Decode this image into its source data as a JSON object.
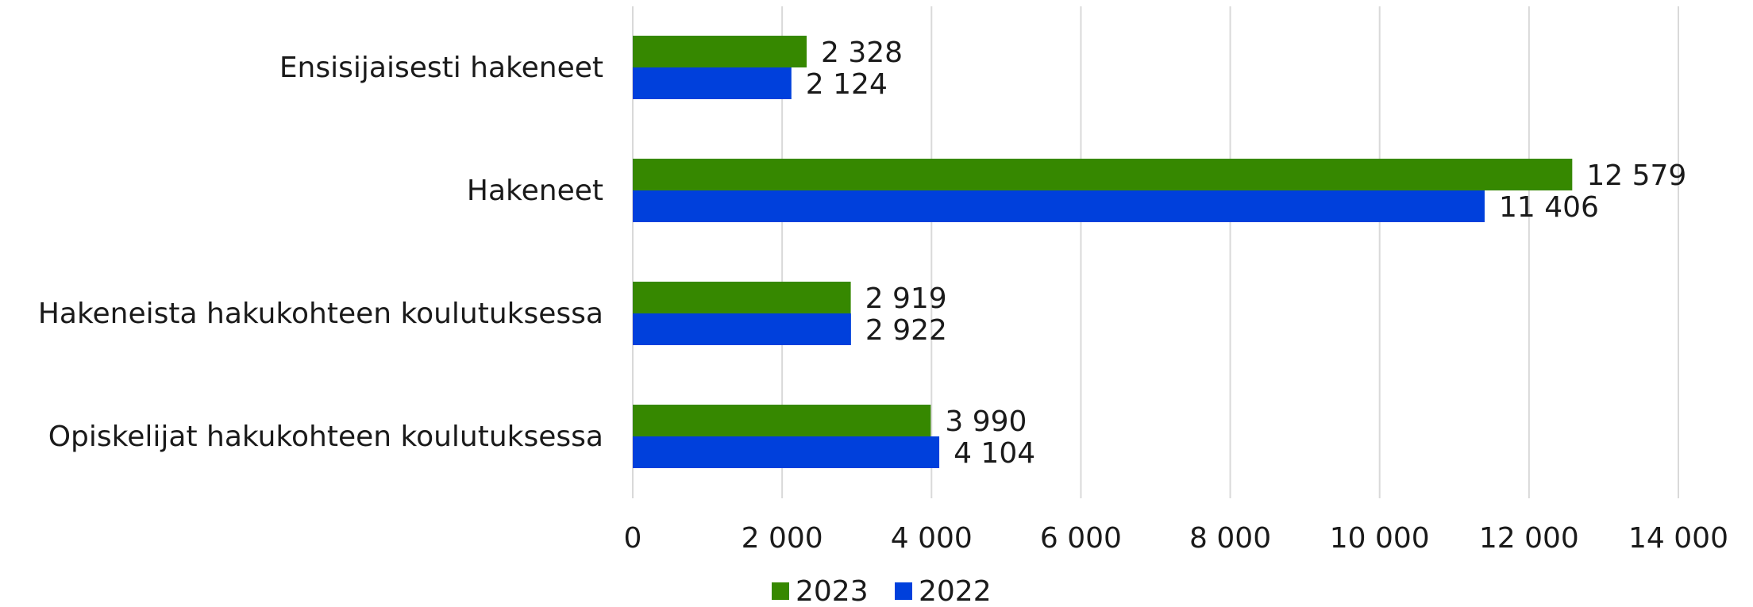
{
  "chart_data": {
    "type": "bar",
    "orientation": "horizontal",
    "categories": [
      "Ensisijaisesti hakeneet",
      "Hakeneet",
      "Hakeneista hakukohteen koulutuksessa",
      "Opiskelijat hakukohteen koulutuksessa"
    ],
    "series": [
      {
        "name": "2023",
        "color": "#368800",
        "values": [
          2328,
          12579,
          2919,
          3990
        ],
        "labels": [
          "2 328",
          "12 579",
          "2 919",
          "3 990"
        ]
      },
      {
        "name": "2022",
        "color": "#0040dc",
        "values": [
          2124,
          11406,
          2922,
          4104
        ],
        "labels": [
          "2 124",
          "11 406",
          "2 922",
          "4 104"
        ]
      }
    ],
    "xlim": [
      0,
      14000
    ],
    "xticks": [
      0,
      2000,
      4000,
      6000,
      8000,
      10000,
      12000,
      14000
    ],
    "xtick_labels": [
      "0",
      "2 000",
      "4 000",
      "6 000",
      "8 000",
      "10 000",
      "12 000",
      "14 000"
    ],
    "grid": true,
    "legend_position": "bottom",
    "title": "",
    "xlabel": "",
    "ylabel": ""
  }
}
